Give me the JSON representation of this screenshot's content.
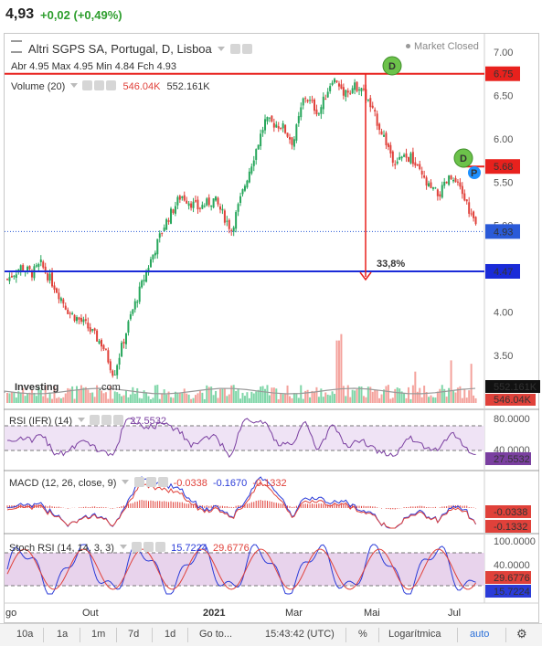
{
  "quote": {
    "price": "4,93",
    "change": "+0,02 (+0,49%)"
  },
  "chart_header": {
    "title": "Altri SGPS SA, Portugal, D, Lisboa",
    "market_status": "Market Closed",
    "ohlc": "Abr 4.95  Max 4.95  Min 4.84  Fch 4.93",
    "volume_label": "Volume (20)",
    "volume_avg": "546.04K",
    "volume_value": "552.161K"
  },
  "price_axis": {
    "ticks": [
      "7.00",
      "6.50",
      "6.00",
      "5.50",
      "5.00",
      "4.50",
      "4.00",
      "3.50"
    ],
    "tags": {
      "high": "6.75",
      "mid": "5.68",
      "last": "4.93",
      "low": "4.47"
    },
    "tag_colors": {
      "high": "#e8211d",
      "mid": "#e8211d",
      "last": "#2a5ad8",
      "low": "#1a2bd8"
    }
  },
  "volume_axis": {
    "value": "552.161K",
    "avg": "546.04K"
  },
  "annotations": {
    "measure_percent": "33,8%",
    "marker_d": "D",
    "marker_p": "P"
  },
  "logo": "Investing.com",
  "rsi": {
    "label": "RSI (IFR) (14)",
    "value": "27.5532",
    "ticks": [
      "80.0000",
      "40.0000"
    ],
    "tag": "27.5532"
  },
  "macd": {
    "label": "MACD (12, 26, close, 9)",
    "v1": "-0.0338",
    "v2": "-0.1670",
    "v3": "-0.1332",
    "tags": [
      "-0.0338",
      "-0.1332"
    ]
  },
  "stoch": {
    "label": "Stoch RSI (14, 14, 3, 3)",
    "v1": "15.7224",
    "v2": "29.6776",
    "ticks": [
      "100.0000",
      "40.0000"
    ],
    "tags": [
      "29.6776",
      "15.7224"
    ]
  },
  "x_axis": [
    "go",
    "Out",
    "2021",
    "Mar",
    "Mai",
    "Jul"
  ],
  "toolbar": {
    "ranges": [
      "10a",
      "1a",
      "1m",
      "7d",
      "1d"
    ],
    "goto": "Go to...",
    "time": "15:43:42 (UTC)",
    "percent": "%",
    "log": "Logarítmica",
    "auto": "auto"
  },
  "colors": {
    "up": "#26a65b",
    "down": "#e0413a",
    "vol_up": "#7fd6a8",
    "vol_down": "#f4a29c",
    "rsi_fill": "#efe3f5",
    "stoch_fill": "#e8d3ec"
  }
}
